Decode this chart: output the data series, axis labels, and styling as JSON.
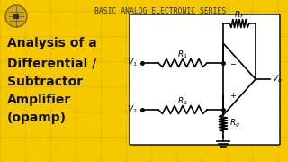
{
  "bg_color": "#F5C800",
  "title_text": "BASIC ANALOG ELECTRONIC SERIES",
  "title_color": "#333333",
  "title_fontsize": 5.8,
  "main_text_lines": [
    "Analysis of a",
    "Differential /",
    "Subtractor",
    "Amplifier",
    "(opamp)"
  ],
  "main_text_color": "#111111",
  "main_text_fontsize": 10.0,
  "circuit_bg": "#FFFFFF",
  "circuit_border": "#000000",
  "line_color": "#000000"
}
